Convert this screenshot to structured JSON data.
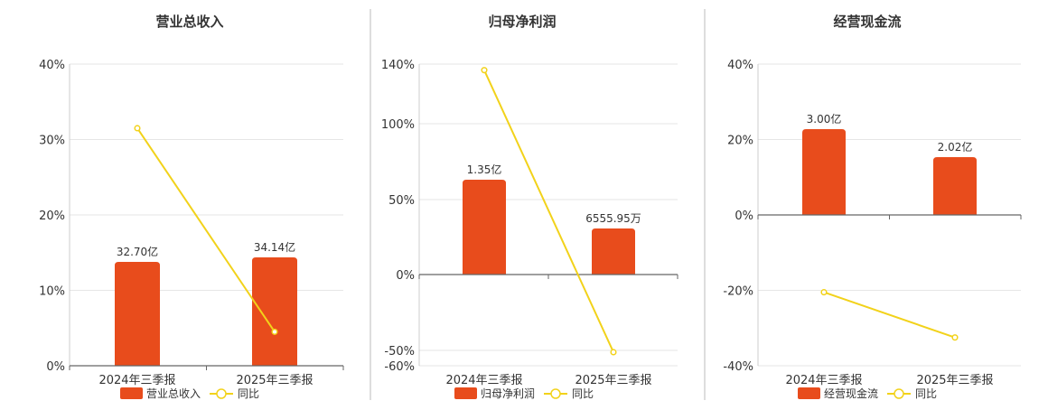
{
  "chart_data": [
    {
      "type": "bar",
      "title": "营业总收入",
      "categories": [
        "2024年三季报",
        "2025年三季报"
      ],
      "series": [
        {
          "name": "营业总收入",
          "type": "bar",
          "values": [
            32.7,
            34.14
          ],
          "labels": [
            "32.70亿",
            "34.14亿"
          ],
          "color": "#e84c1c"
        },
        {
          "name": "同比",
          "type": "line",
          "values": [
            31.5,
            4.5
          ],
          "color": "#f2d21a"
        }
      ],
      "y_ticks": [
        "40%",
        "30%",
        "20%",
        "10%",
        "0%"
      ],
      "ylim": [
        0,
        40
      ],
      "grid": true,
      "legend": "bottom"
    },
    {
      "type": "bar",
      "title": "归母净利润",
      "categories": [
        "2024年三季报",
        "2025年三季报"
      ],
      "series": [
        {
          "name": "归母净利润",
          "type": "bar",
          "values": [
            1.35,
            0.6556
          ],
          "labels": [
            "1.35亿",
            "6555.95万"
          ],
          "color": "#e84c1c"
        },
        {
          "name": "同比",
          "type": "line",
          "values": [
            136,
            -51
          ],
          "color": "#f2d21a"
        }
      ],
      "y_ticks": [
        "140%",
        "100%",
        "50%",
        "0%",
        "-50%",
        "-60%"
      ],
      "ylim": [
        -60,
        140
      ],
      "grid": true,
      "legend": "bottom"
    },
    {
      "type": "bar",
      "title": "经营现金流",
      "categories": [
        "2024年三季报",
        "2025年三季报"
      ],
      "series": [
        {
          "name": "经营现金流",
          "type": "bar",
          "values": [
            3.0,
            2.02
          ],
          "labels": [
            "3.00亿",
            "2.02亿"
          ],
          "color": "#e84c1c"
        },
        {
          "name": "同比",
          "type": "line",
          "values": [
            -20.5,
            -32.5
          ],
          "color": "#f2d21a"
        }
      ],
      "y_ticks": [
        "40%",
        "20%",
        "0%",
        "-20%",
        "-40%"
      ],
      "ylim": [
        -40,
        40
      ],
      "grid": true,
      "legend": "bottom"
    }
  ]
}
